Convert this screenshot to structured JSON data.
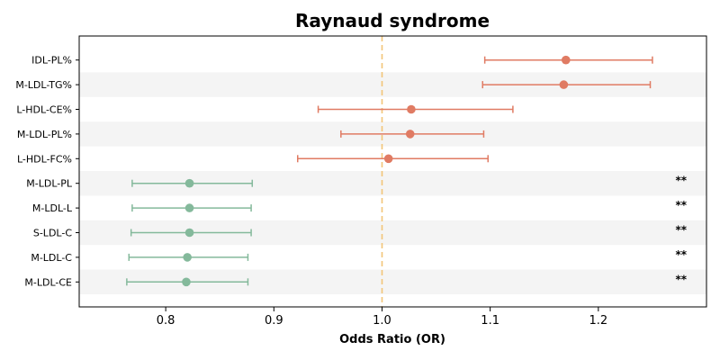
{
  "chart_data": {
    "type": "scatter",
    "title": "Raynaud syndrome",
    "xlabel": "Odds Ratio (OR)",
    "ylabel": "",
    "xlim": [
      0.72,
      1.3
    ],
    "xticks": [
      0.8,
      0.9,
      1.0,
      1.1,
      1.2
    ],
    "xtick_labels": [
      "0.8",
      "0.9",
      "1.0",
      "1.1",
      "1.2"
    ],
    "reference_line": 1.0,
    "colors": {
      "risk": "#e07b63",
      "protective": "#84b99b",
      "reference": "#f2c577",
      "stripe": "#f4f4f4"
    },
    "rows": [
      {
        "label": "IDL-PL%",
        "or": 1.17,
        "lo": 1.095,
        "hi": 1.25,
        "group": "risk",
        "sig": ""
      },
      {
        "label": "M-LDL-TG%",
        "or": 1.168,
        "lo": 1.093,
        "hi": 1.248,
        "group": "risk",
        "sig": ""
      },
      {
        "label": "L-HDL-CE%",
        "or": 1.027,
        "lo": 0.941,
        "hi": 1.121,
        "group": "risk",
        "sig": ""
      },
      {
        "label": "M-LDL-PL%",
        "or": 1.026,
        "lo": 0.962,
        "hi": 1.094,
        "group": "risk",
        "sig": ""
      },
      {
        "label": "L-HDL-FC%",
        "or": 1.006,
        "lo": 0.922,
        "hi": 1.098,
        "group": "risk",
        "sig": ""
      },
      {
        "label": "M-LDL-PL",
        "or": 0.822,
        "lo": 0.769,
        "hi": 0.88,
        "group": "protective",
        "sig": "**"
      },
      {
        "label": "M-LDL-L",
        "or": 0.822,
        "lo": 0.769,
        "hi": 0.879,
        "group": "protective",
        "sig": "**"
      },
      {
        "label": "S-LDL-C",
        "or": 0.822,
        "lo": 0.768,
        "hi": 0.879,
        "group": "protective",
        "sig": "**"
      },
      {
        "label": "M-LDL-C",
        "or": 0.82,
        "lo": 0.766,
        "hi": 0.876,
        "group": "protective",
        "sig": "**"
      },
      {
        "label": "M-LDL-CE",
        "or": 0.819,
        "lo": 0.764,
        "hi": 0.876,
        "group": "protective",
        "sig": "**"
      }
    ]
  }
}
